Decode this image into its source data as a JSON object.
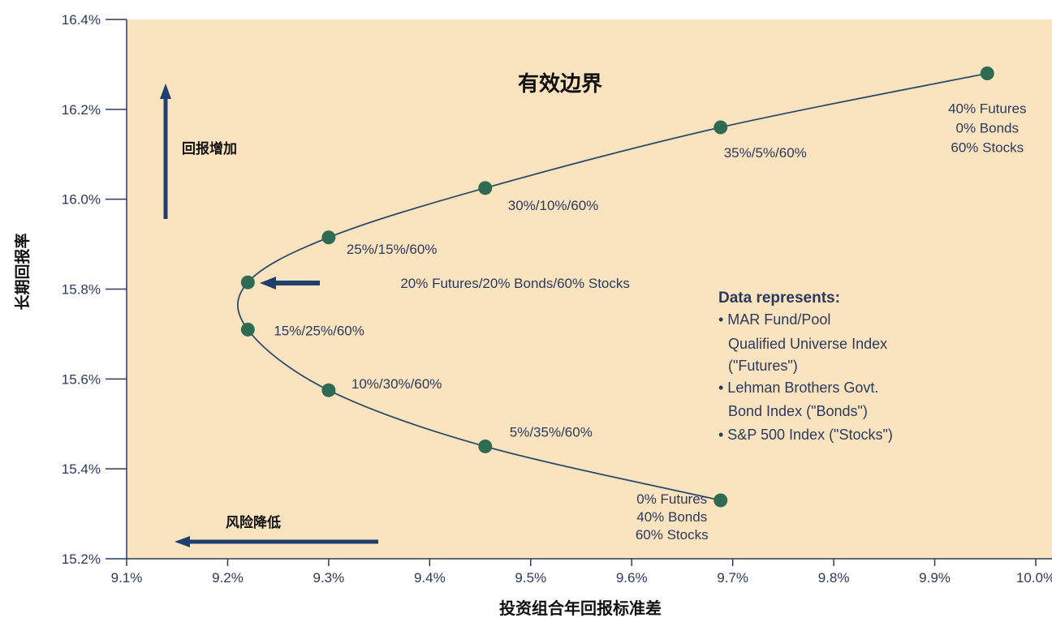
{
  "chart_data": {
    "type": "line",
    "title": "有效边界",
    "xlabel": "投资组合年回报标准差",
    "ylabel": "长期回报率",
    "xlim": [
      9.1,
      10.0
    ],
    "ylim": [
      15.2,
      16.4
    ],
    "x_ticks": [
      "9.1%",
      "9.2%",
      "9.3%",
      "9.4%",
      "9.5%",
      "9.6%",
      "9.7%",
      "9.8%",
      "9.9%",
      "10.0%"
    ],
    "y_ticks": [
      "15.2%",
      "15.4%",
      "15.6%",
      "15.8%",
      "16.0%",
      "16.2%",
      "16.4%"
    ],
    "grid": false,
    "series": [
      {
        "points": [
          {
            "x": 9.688,
            "y": 15.33,
            "label": [
              "0% Futures",
              "40% Bonds",
              "60% Stocks"
            ]
          },
          {
            "x": 9.455,
            "y": 15.45,
            "label": [
              "5%/35%/60%"
            ]
          },
          {
            "x": 9.3,
            "y": 15.575,
            "label": [
              "10%/30%/60%"
            ]
          },
          {
            "x": 9.22,
            "y": 15.71,
            "label": [
              "15%/25%/60%"
            ]
          },
          {
            "x": 9.22,
            "y": 15.815,
            "label": [
              "20% Futures/20% Bonds/60% Stocks"
            ]
          },
          {
            "x": 9.3,
            "y": 15.915,
            "label": [
              "25%/15%/60%"
            ]
          },
          {
            "x": 9.455,
            "y": 16.025,
            "label": [
              "30%/10%/60%"
            ]
          },
          {
            "x": 9.688,
            "y": 16.16,
            "label": [
              "35%/5%/60%"
            ]
          },
          {
            "x": 9.952,
            "y": 16.28,
            "label": [
              "40% Futures",
              "0% Bonds",
              "60% Stocks"
            ]
          }
        ]
      }
    ],
    "annotations": {
      "return_up": "回报增加",
      "risk_down": "风险降低"
    },
    "note": {
      "title": "Data represents:",
      "lines": [
        "• MAR Fund/Pool",
        "Qualified Universe Index",
        "(\"Futures\")",
        "• Lehman Brothers Govt.",
        "Bond Index (\"Bonds\")",
        "• S&P 500 Index (\"Stocks\")"
      ]
    },
    "colors": {
      "plot_bg": "#fae3bf",
      "line": "#2d4a6b",
      "marker": "#2f6b52",
      "arrow": "#1f3f6e",
      "text": "#2b3a5c"
    }
  }
}
